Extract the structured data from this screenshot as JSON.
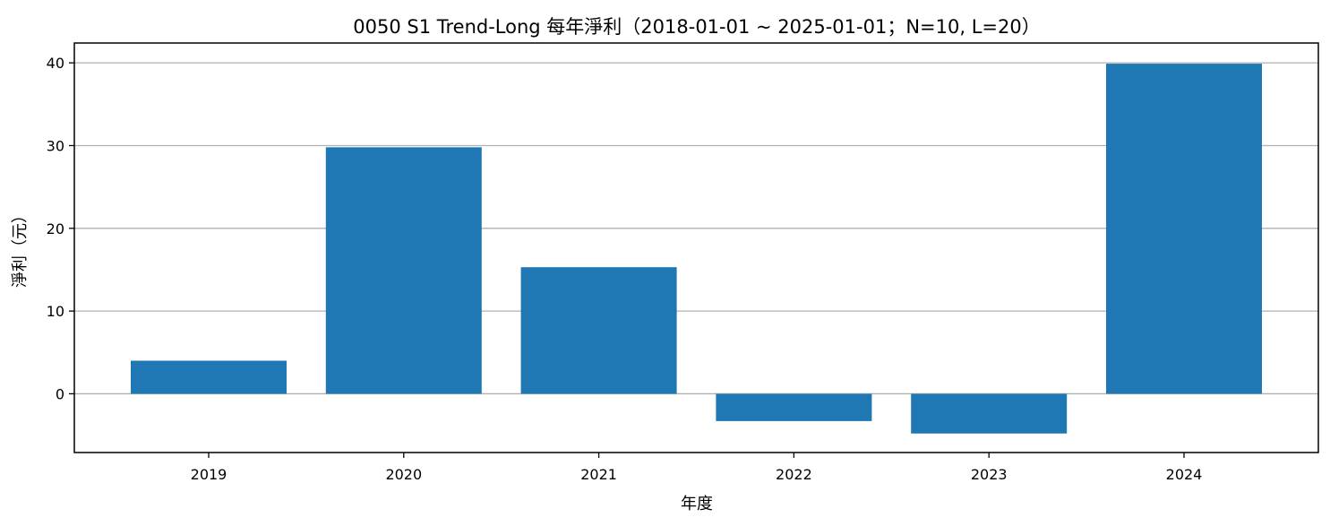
{
  "chart_data": {
    "type": "bar",
    "title": "0050 S1 Trend-Long 每年淨利（2018-01-01 ~ 2025-01-01；N=10, L=20）",
    "xlabel": "年度",
    "ylabel": "淨利（元）",
    "categories": [
      "2019",
      "2020",
      "2021",
      "2022",
      "2023",
      "2024"
    ],
    "values": [
      4.0,
      29.8,
      15.3,
      -3.3,
      -4.8,
      39.9
    ],
    "ylim": [
      -7.1,
      42.4
    ],
    "yticks": [
      0,
      10,
      20,
      30,
      40
    ],
    "grid": "y",
    "bar_color": "#1f77b4",
    "grid_color": "#b0b0b0"
  }
}
